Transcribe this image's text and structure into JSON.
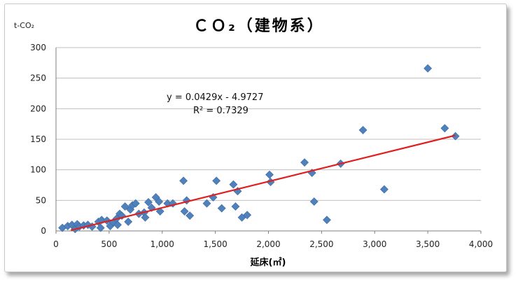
{
  "chart_data": {
    "type": "scatter",
    "title": "ＣＯ₂（建物系）",
    "ylabel": "t-CO₂",
    "xlabel": "延床(㎡)",
    "xlim": [
      0,
      4000
    ],
    "ylim": [
      0,
      300
    ],
    "xticks": [
      0,
      500,
      1000,
      1500,
      2000,
      2500,
      3000,
      3500,
      4000
    ],
    "xtick_labels": [
      "0",
      "500",
      "1,000",
      "1,500",
      "2,000",
      "2,500",
      "3,000",
      "3,500",
      "4,000"
    ],
    "yticks": [
      0,
      50,
      100,
      150,
      200,
      250,
      300
    ],
    "ytick_labels": [
      "0",
      "50",
      "100",
      "150",
      "200",
      "250",
      "300"
    ],
    "grid": "horizontal",
    "marker_color": "#4f81bd",
    "trend_color": "#e02020",
    "trendline": {
      "slope": 0.0429,
      "intercept": -4.9727,
      "x_range": [
        140,
        3760
      ]
    },
    "equation_text": "y = 0.0429x - 4.9727",
    "r2_text": "R² = 0.7329",
    "points": [
      [
        60,
        5
      ],
      [
        110,
        8
      ],
      [
        150,
        10
      ],
      [
        180,
        3
      ],
      [
        200,
        11
      ],
      [
        220,
        7
      ],
      [
        260,
        9
      ],
      [
        300,
        10
      ],
      [
        340,
        7
      ],
      [
        400,
        15
      ],
      [
        420,
        5
      ],
      [
        430,
        18
      ],
      [
        480,
        17
      ],
      [
        510,
        8
      ],
      [
        540,
        14
      ],
      [
        570,
        20
      ],
      [
        580,
        10
      ],
      [
        600,
        28
      ],
      [
        620,
        25
      ],
      [
        650,
        40
      ],
      [
        680,
        15
      ],
      [
        700,
        35
      ],
      [
        720,
        42
      ],
      [
        750,
        45
      ],
      [
        780,
        28
      ],
      [
        830,
        30
      ],
      [
        840,
        22
      ],
      [
        870,
        47
      ],
      [
        900,
        38
      ],
      [
        940,
        55
      ],
      [
        970,
        48
      ],
      [
        980,
        32
      ],
      [
        1050,
        45
      ],
      [
        1100,
        45
      ],
      [
        1200,
        82
      ],
      [
        1210,
        32
      ],
      [
        1230,
        50
      ],
      [
        1260,
        25
      ],
      [
        1420,
        45
      ],
      [
        1480,
        55
      ],
      [
        1510,
        82
      ],
      [
        1560,
        37
      ],
      [
        1670,
        76
      ],
      [
        1690,
        40
      ],
      [
        1710,
        65
      ],
      [
        1750,
        22
      ],
      [
        1800,
        26
      ],
      [
        2010,
        92
      ],
      [
        2020,
        80
      ],
      [
        2340,
        112
      ],
      [
        2410,
        95
      ],
      [
        2430,
        48
      ],
      [
        2550,
        18
      ],
      [
        2680,
        110
      ],
      [
        2890,
        165
      ],
      [
        3090,
        68
      ],
      [
        3500,
        266
      ],
      [
        3660,
        168
      ],
      [
        3760,
        155
      ]
    ]
  }
}
